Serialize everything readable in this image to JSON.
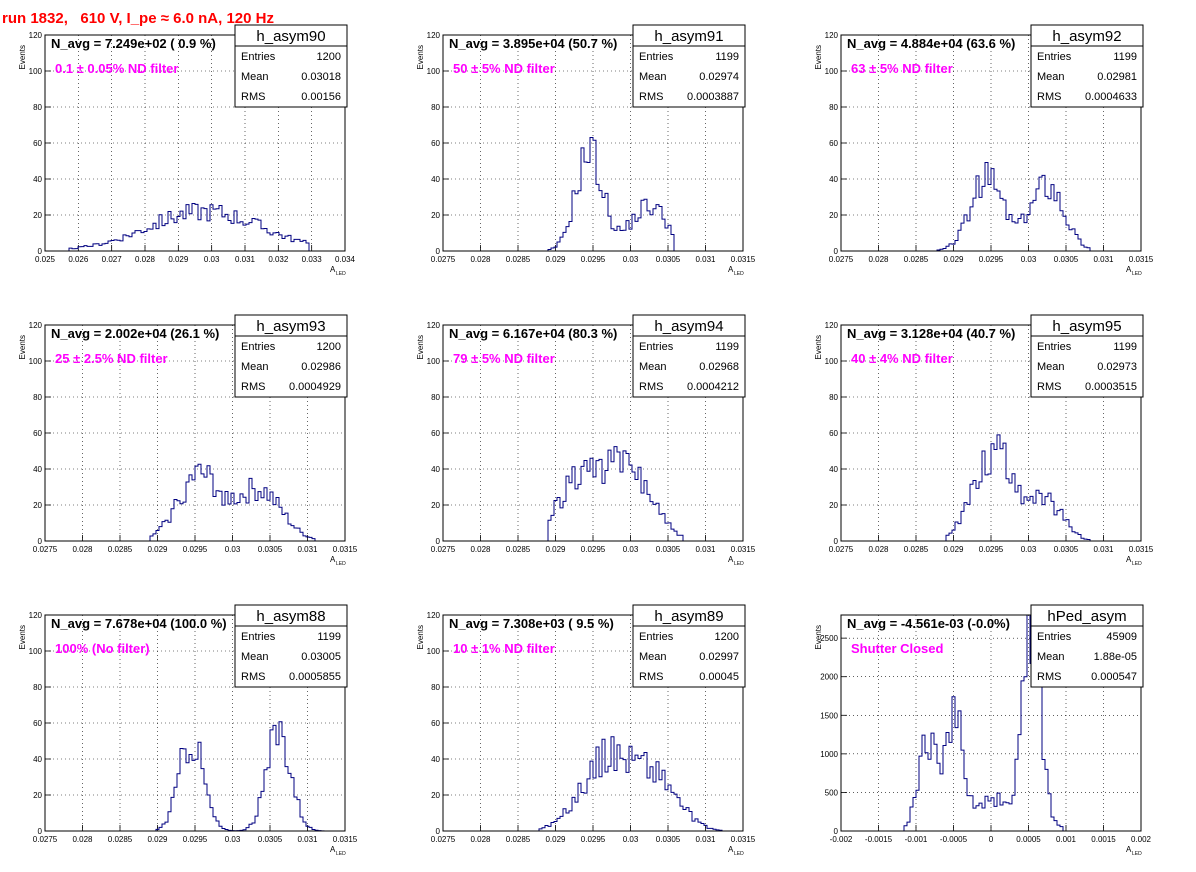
{
  "page": {
    "title": "run 1832,   610 V, I_pe ≈ 6.0 nA, 120 Hz",
    "colors": {
      "title": "#ff0000",
      "filter_label": "#ff00ff",
      "histogram": "#000080"
    },
    "axis_label_x": {
      "main": "A",
      "sub": "LED"
    },
    "axis_label_y": "Events"
  },
  "chart_data": [
    {
      "type": "histogram",
      "name": "h_asym90",
      "navg": "N_avg = 7.249e+02 ( 0.9 %)",
      "filter": "0.1 ± 0.05% ND filter",
      "stats": [
        [
          "Entries",
          "1200"
        ],
        [
          "Mean",
          "0.03018"
        ],
        [
          "RMS",
          "0.00156"
        ]
      ],
      "xlim": [
        0.025,
        0.034
      ],
      "ylim": [
        0,
        120
      ],
      "xticks": [
        "0.025",
        "0.026",
        "0.027",
        "0.028",
        "0.029",
        "0.03",
        "0.031",
        "0.032",
        "0.033",
        "0.034"
      ],
      "yticks": [
        "0",
        "20",
        "40",
        "60",
        "80",
        "100",
        "120"
      ],
      "peaks": [
        {
          "c": 0.0298,
          "s": 0.0017,
          "a": 22
        }
      ],
      "xrange": [
        0.0257,
        0.0329
      ],
      "seed": 90,
      "ylabel": "Events",
      "xlabel": "A_LED",
      "grid": true
    },
    {
      "type": "histogram",
      "name": "h_asym91",
      "navg": "N_avg = 3.895e+04 (50.7 %)",
      "filter": "50 ± 5% ND filter",
      "stats": [
        [
          "Entries",
          "1199"
        ],
        [
          "Mean",
          "0.02974"
        ],
        [
          "RMS",
          "0.0003887"
        ]
      ],
      "xlim": [
        0.0275,
        0.0315
      ],
      "ylim": [
        0,
        120
      ],
      "xticks": [
        "0.0275",
        "0.028",
        "0.0285",
        "0.029",
        "0.0295",
        "0.03",
        "0.0305",
        "0.031",
        "0.0315"
      ],
      "yticks": [
        "0",
        "20",
        "40",
        "60",
        "80",
        "100",
        "120"
      ],
      "peaks": [
        {
          "c": 0.02945,
          "s": 0.00018,
          "a": 55
        },
        {
          "c": 0.03025,
          "s": 0.00025,
          "a": 25
        }
      ],
      "xrange": [
        0.0289,
        0.0306
      ],
      "seed": 91,
      "ylabel": "Events",
      "xlabel": "A_LED",
      "grid": true
    },
    {
      "type": "histogram",
      "name": "h_asym92",
      "navg": "N_avg = 4.884e+04 (63.6 %)",
      "filter": "63 ± 5% ND filter",
      "stats": [
        [
          "Entries",
          "1199"
        ],
        [
          "Mean",
          "0.02981"
        ],
        [
          "RMS",
          "0.0004633"
        ]
      ],
      "xlim": [
        0.0275,
        0.0315
      ],
      "ylim": [
        0,
        120
      ],
      "xticks": [
        "0.0275",
        "0.028",
        "0.0285",
        "0.029",
        "0.0295",
        "0.03",
        "0.0305",
        "0.031",
        "0.0315"
      ],
      "yticks": [
        "0",
        "20",
        "40",
        "60",
        "80",
        "100",
        "120"
      ],
      "peaks": [
        {
          "c": 0.02945,
          "s": 0.00022,
          "a": 40
        },
        {
          "c": 0.03025,
          "s": 0.00022,
          "a": 38
        }
      ],
      "xrange": [
        0.0288,
        0.0308
      ],
      "seed": 92,
      "ylabel": "Events",
      "xlabel": "A_LED",
      "grid": true
    },
    {
      "type": "histogram",
      "name": "h_asym93",
      "navg": "N_avg = 2.002e+04 (26.1 %)",
      "filter": "25 ± 2.5% ND filter",
      "stats": [
        [
          "Entries",
          "1200"
        ],
        [
          "Mean",
          "0.02986"
        ],
        [
          "RMS",
          "0.0004929"
        ]
      ],
      "xlim": [
        0.0275,
        0.0315
      ],
      "ylim": [
        0,
        120
      ],
      "xticks": [
        "0.0275",
        "0.028",
        "0.0285",
        "0.029",
        "0.0295",
        "0.03",
        "0.0305",
        "0.031",
        "0.0315"
      ],
      "yticks": [
        "0",
        "20",
        "40",
        "60",
        "80",
        "100",
        "120"
      ],
      "peaks": [
        {
          "c": 0.02955,
          "s": 0.00028,
          "a": 36
        },
        {
          "c": 0.03035,
          "s": 0.0003,
          "a": 28
        }
      ],
      "xrange": [
        0.0289,
        0.0311
      ],
      "seed": 93,
      "ylabel": "Events",
      "xlabel": "A_LED",
      "grid": true
    },
    {
      "type": "histogram",
      "name": "h_asym94",
      "navg": "N_avg = 6.167e+04 (80.3 %)",
      "filter": "79 ± 5% ND filter",
      "stats": [
        [
          "Entries",
          "1199"
        ],
        [
          "Mean",
          "0.02968"
        ],
        [
          "RMS",
          "0.0004212"
        ]
      ],
      "xlim": [
        0.0275,
        0.0315
      ],
      "ylim": [
        0,
        120
      ],
      "xticks": [
        "0.0275",
        "0.028",
        "0.0285",
        "0.029",
        "0.0295",
        "0.03",
        "0.0305",
        "0.031",
        "0.0315"
      ],
      "yticks": [
        "0",
        "20",
        "40",
        "60",
        "80",
        "100",
        "120"
      ],
      "peaks": [
        {
          "c": 0.02935,
          "s": 0.0003,
          "a": 36
        },
        {
          "c": 0.03,
          "s": 0.0003,
          "a": 38
        }
      ],
      "xrange": [
        0.0289,
        0.0307
      ],
      "seed": 94,
      "ylabel": "Events",
      "xlabel": "A_LED",
      "grid": true
    },
    {
      "type": "histogram",
      "name": "h_asym95",
      "navg": "N_avg = 3.128e+04 (40.7 %)",
      "filter": "40 ± 4% ND filter",
      "stats": [
        [
          "Entries",
          "1199"
        ],
        [
          "Mean",
          "0.02973"
        ],
        [
          "RMS",
          "0.0003515"
        ]
      ],
      "xlim": [
        0.0275,
        0.0315
      ],
      "ylim": [
        0,
        120
      ],
      "xticks": [
        "0.0275",
        "0.028",
        "0.0285",
        "0.029",
        "0.0295",
        "0.03",
        "0.0305",
        "0.031",
        "0.0315"
      ],
      "yticks": [
        "0",
        "20",
        "40",
        "60",
        "80",
        "100",
        "120"
      ],
      "peaks": [
        {
          "c": 0.02955,
          "s": 0.00028,
          "a": 50
        },
        {
          "c": 0.03025,
          "s": 0.00022,
          "a": 20
        }
      ],
      "xrange": [
        0.0289,
        0.0308
      ],
      "seed": 95,
      "ylabel": "Events",
      "xlabel": "A_LED",
      "grid": true
    },
    {
      "type": "histogram",
      "name": "h_asym88",
      "navg": "N_avg = 7.678e+04 (100.0 %)",
      "filter": "100% (No filter)",
      "stats": [
        [
          "Entries",
          "1199"
        ],
        [
          "Mean",
          "0.03005"
        ],
        [
          "RMS",
          "0.0005855"
        ]
      ],
      "xlim": [
        0.0275,
        0.0315
      ],
      "ylim": [
        0,
        120
      ],
      "xticks": [
        "0.0275",
        "0.028",
        "0.0285",
        "0.029",
        "0.0295",
        "0.03",
        "0.0305",
        "0.031",
        "0.0315"
      ],
      "yticks": [
        "0",
        "20",
        "40",
        "60",
        "80",
        "100",
        "120"
      ],
      "peaks": [
        {
          "c": 0.02945,
          "s": 0.00016,
          "a": 52
        },
        {
          "c": 0.03062,
          "s": 0.00016,
          "a": 56
        }
      ],
      "xrange": [
        0.029,
        0.0312
      ],
      "seed": 88,
      "ylabel": "Events",
      "xlabel": "A_LED",
      "grid": true
    },
    {
      "type": "histogram",
      "name": "h_asym89",
      "navg": "N_avg = 7.308e+03 ( 9.5 %)",
      "filter": "10 ± 1% ND filter",
      "stats": [
        [
          "Entries",
          "1200"
        ],
        [
          "Mean",
          "0.02997"
        ],
        [
          "RMS",
          "0.00045"
        ]
      ],
      "xlim": [
        0.0275,
        0.0315
      ],
      "ylim": [
        0,
        120
      ],
      "xticks": [
        "0.0275",
        "0.028",
        "0.0285",
        "0.029",
        "0.0295",
        "0.03",
        "0.0305",
        "0.031",
        "0.0315"
      ],
      "yticks": [
        "0",
        "20",
        "40",
        "60",
        "80",
        "100",
        "120"
      ],
      "peaks": [
        {
          "c": 0.0297,
          "s": 0.00035,
          "a": 40
        },
        {
          "c": 0.03035,
          "s": 0.0003,
          "a": 26
        }
      ],
      "xrange": [
        0.0288,
        0.0312
      ],
      "seed": 89,
      "ylabel": "Events",
      "xlabel": "A_LED",
      "grid": true
    },
    {
      "type": "histogram",
      "name": "hPed_asym",
      "navg": "N_avg = -4.561e-03 (-0.0%)",
      "filter": "Shutter Closed",
      "stats": [
        [
          "Entries",
          "45909"
        ],
        [
          "Mean",
          "1.88e-05"
        ],
        [
          "RMS",
          "0.000547"
        ]
      ],
      "xlim": [
        -0.002,
        0.002
      ],
      "ylim": [
        0,
        2800
      ],
      "xticks": [
        "-0.002",
        "-0.0015",
        "-0.001",
        "-0.0005",
        "0",
        "0.0005",
        "0.001",
        "0.0015",
        "0.002"
      ],
      "yticks": [
        "0",
        "500",
        "1000",
        "1500",
        "2000",
        "2500"
      ],
      "peaks": [
        {
          "c": -0.00085,
          "s": 0.00012,
          "a": 1150
        },
        {
          "c": -0.0005,
          "s": 0.00011,
          "a": 1450
        },
        {
          "c": 0.00055,
          "s": 0.00011,
          "a": 2650
        },
        {
          "c": 0.0001,
          "s": 0.0004,
          "a": 400
        }
      ],
      "xrange": [
        -0.00115,
        0.00095
      ],
      "seed": 80,
      "ylabel": "Events",
      "xlabel": "A_LED",
      "grid": true
    }
  ]
}
